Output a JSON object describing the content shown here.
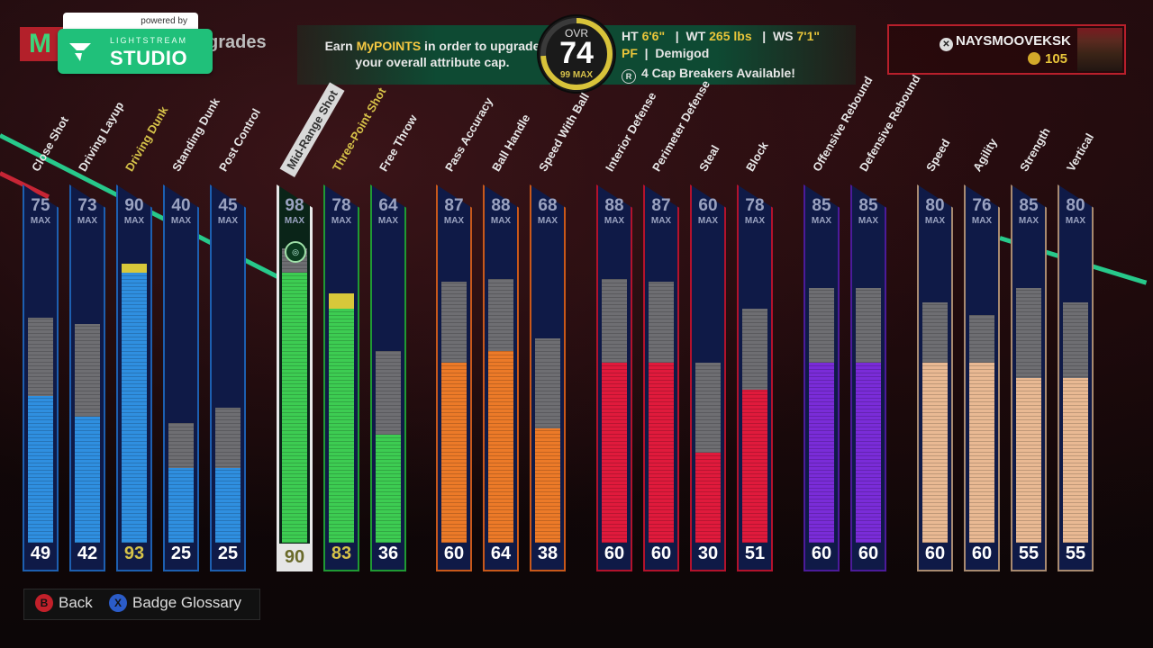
{
  "header": {
    "title_fragment": "grades",
    "logo_letter": "M"
  },
  "overlay": {
    "powered": "powered by",
    "brand_small": "LIGHTSTREAM",
    "brand_big": "STUDIO"
  },
  "banner": {
    "text_1": "Earn ",
    "text_highlight": "MyPOINTS",
    "text_2": " in order to upgrade your overall attribute cap."
  },
  "ovr": {
    "label": "OVR",
    "value": "74",
    "max": "99 MAX"
  },
  "player": {
    "ht_label": "HT",
    "ht": "6'6\"",
    "wt_label": "WT",
    "wt": "265 lbs",
    "ws_label": "WS",
    "ws": "7'1\"",
    "position": "PF",
    "archetype": "Demigod",
    "cap_breakers": "4 Cap Breakers Available!"
  },
  "user": {
    "gamertag": "NAYSMOOVEKSK",
    "coins": "105"
  },
  "attributes": [
    {
      "name": "Close Shot",
      "max": "75",
      "cur": "49",
      "group": "blue"
    },
    {
      "name": "Driving Layup",
      "max": "73",
      "cur": "42",
      "group": "blue"
    },
    {
      "name": "Driving Dunk",
      "max": "90",
      "cur": "93",
      "group": "blue",
      "gold": true
    },
    {
      "name": "Standing Dunk",
      "max": "40",
      "cur": "25",
      "group": "blue"
    },
    {
      "name": "Post Control",
      "max": "45",
      "cur": "25",
      "group": "blue"
    },
    {
      "name": "Mid-Range Shot",
      "max": "98",
      "cur": "90",
      "group": "green",
      "selected": true
    },
    {
      "name": "Three-Point Shot",
      "max": "78",
      "cur": "83",
      "group": "green",
      "gold": true
    },
    {
      "name": "Free Throw",
      "max": "64",
      "cur": "36",
      "group": "green"
    },
    {
      "name": "Pass Accuracy",
      "max": "87",
      "cur": "60",
      "group": "orange"
    },
    {
      "name": "Ball Handle",
      "max": "88",
      "cur": "64",
      "group": "orange"
    },
    {
      "name": "Speed With Ball",
      "max": "68",
      "cur": "38",
      "group": "orange"
    },
    {
      "name": "Interior Defense",
      "max": "88",
      "cur": "60",
      "group": "red"
    },
    {
      "name": "Perimeter Defense",
      "max": "87",
      "cur": "60",
      "group": "red"
    },
    {
      "name": "Steal",
      "max": "60",
      "cur": "30",
      "group": "red"
    },
    {
      "name": "Block",
      "max": "78",
      "cur": "51",
      "group": "red"
    },
    {
      "name": "Offensive Rebound",
      "max": "85",
      "cur": "60",
      "group": "purple"
    },
    {
      "name": "Defensive Rebound",
      "max": "85",
      "cur": "60",
      "group": "purple"
    },
    {
      "name": "Speed",
      "max": "80",
      "cur": "60",
      "group": "tan"
    },
    {
      "name": "Agility",
      "max": "76",
      "cur": "60",
      "group": "tan"
    },
    {
      "name": "Strength",
      "max": "85",
      "cur": "55",
      "group": "tan"
    },
    {
      "name": "Vertical",
      "max": "80",
      "cur": "55",
      "group": "tan"
    }
  ],
  "max_label": "MAX",
  "colors": {
    "blue": "#2f8fe0",
    "green": "#3dcc52",
    "orange": "#ec7a28",
    "red": "#e01a3c",
    "purple": "#7a2cd8",
    "tan": "#e9b993",
    "gold": "#d8c83a",
    "gray": "#6e6e72",
    "border_blue": "#1d5fb0",
    "border_green": "#1f9a34",
    "border_orange": "#c8581a",
    "border_red": "#b3122c",
    "border_purple": "#4b1b9a",
    "border_tan": "#a88a70"
  },
  "bottom": {
    "back_key": "B",
    "back": "Back",
    "glossary_key": "X",
    "glossary": "Badge Glossary"
  }
}
